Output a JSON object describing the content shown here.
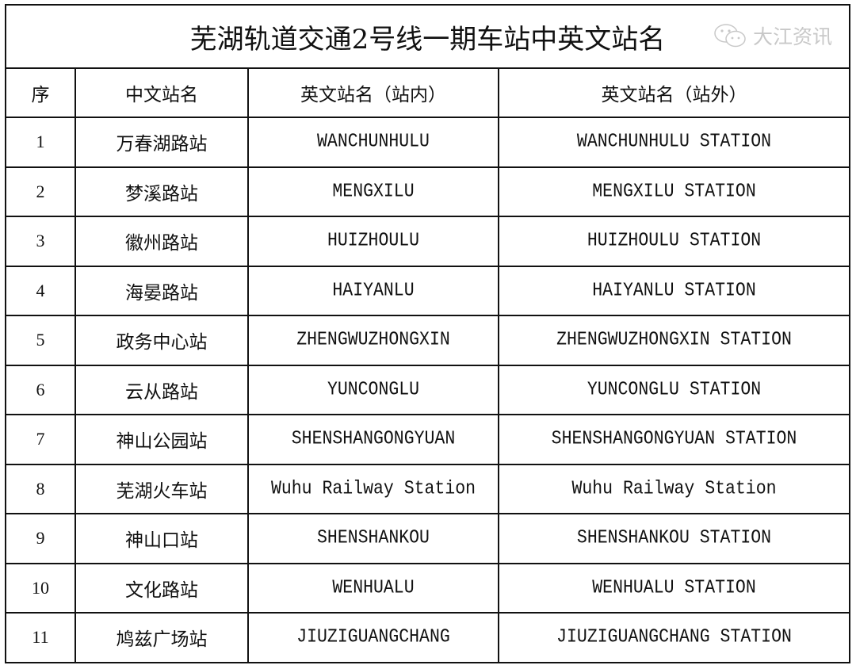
{
  "title": "芜湖轨道交通2号线一期车站中英文站名",
  "headers": [
    "序",
    "中文站名",
    "英文站名（站内）",
    "英文站名（站外）"
  ],
  "rows": [
    {
      "no": "1",
      "zh": "万春湖路站",
      "inner": "WANCHUNHULU",
      "outer": "WANCHUNHULU STATION"
    },
    {
      "no": "2",
      "zh": "梦溪路站",
      "inner": "MENGXILU",
      "outer": "MENGXILU STATION"
    },
    {
      "no": "3",
      "zh": "徽州路站",
      "inner": "HUIZHOULU",
      "outer": "HUIZHOULU STATION"
    },
    {
      "no": "4",
      "zh": "海晏路站",
      "inner": "HAIYANLU",
      "outer": "HAIYANLU STATION"
    },
    {
      "no": "5",
      "zh": "政务中心站",
      "inner": "ZHENGWUZHONGXIN",
      "outer": "ZHENGWUZHONGXIN STATION"
    },
    {
      "no": "6",
      "zh": "云从路站",
      "inner": "YUNCONGLU",
      "outer": "YUNCONGLU STATION"
    },
    {
      "no": "7",
      "zh": "神山公园站",
      "inner": "SHENSHANGONGYUAN",
      "outer": "SHENSHANGONGYUAN STATION"
    },
    {
      "no": "8",
      "zh": "芜湖火车站",
      "inner": "Wuhu Railway Station",
      "outer": "Wuhu Railway Station"
    },
    {
      "no": "9",
      "zh": "神山口站",
      "inner": "SHENSHANKOU",
      "outer": "SHENSHANKOU STATION"
    },
    {
      "no": "10",
      "zh": "文化路站",
      "inner": "WENHUALU",
      "outer": "WENHUALU STATION"
    },
    {
      "no": "11",
      "zh": "鸠兹广场站",
      "inner": "JIUZIGUANGCHANG",
      "outer": "JIUZIGUANGCHANG STATION"
    }
  ],
  "watermark": {
    "icon": "wechat-icon",
    "text": "大江资讯"
  }
}
